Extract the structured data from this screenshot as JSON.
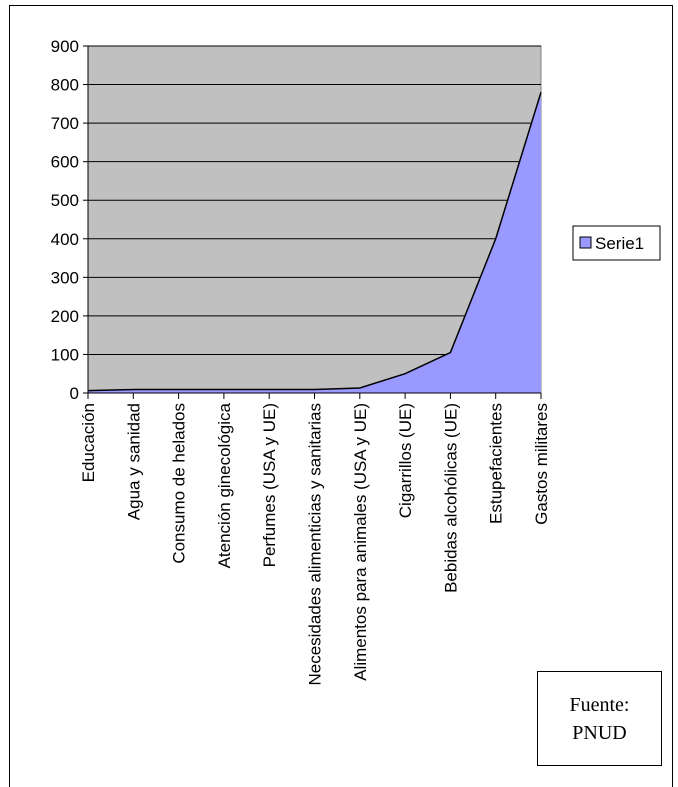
{
  "source": {
    "line1": "Fuente:",
    "line2": "PNUD"
  },
  "colors": {
    "plot_bg": "#c0c0c0",
    "area_fill": "#9999ff",
    "line": "#000000"
  },
  "chart_data": {
    "type": "area",
    "categories": [
      "Educación",
      "Agua y sanidad",
      "Consumo de helados",
      "Atención ginecológica",
      "Perfumes (USA y UE)",
      "Necesidades alimenticias y sanitarias",
      "Alimentos para animales (USA y UE)",
      "Cigarrillos (UE)",
      "Bebidas alcohólicas (UE)",
      "Estupefacientes",
      "Gastos militares"
    ],
    "series": [
      {
        "name": "Serie1",
        "values": [
          6,
          9,
          9,
          9,
          9,
          9,
          13,
          50,
          105,
          400,
          780
        ]
      }
    ],
    "ylim": [
      0,
      900
    ],
    "yticks": [
      0,
      100,
      200,
      300,
      400,
      500,
      600,
      700,
      800,
      900
    ],
    "grid": true,
    "legend": "right"
  }
}
